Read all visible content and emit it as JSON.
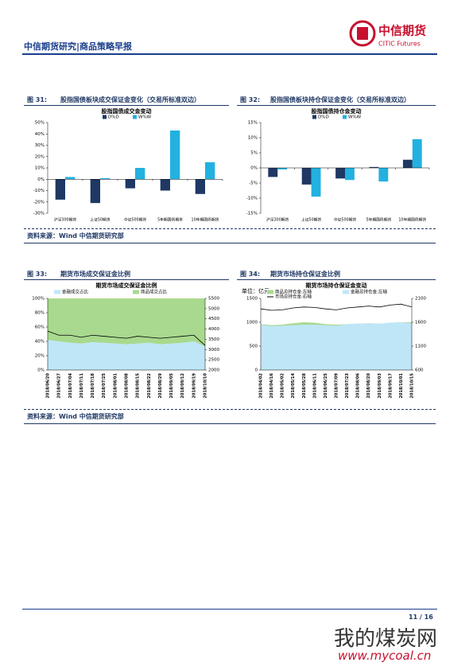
{
  "header": {
    "title": "中信期货研究|商品策略早报",
    "logo_cn": "中信期货",
    "logo_en": "CITIC Futures"
  },
  "figures": [
    {
      "label": "图 31:",
      "title": "股指国债板块成交保证金变化（交易所标准双边）"
    },
    {
      "label": "图 32:",
      "title": "股指国债板块持仓保证金变化（交易所标准双边）"
    },
    {
      "label": "图 33:",
      "title": "期货市场成交保证金比例"
    },
    {
      "label": "图 34:",
      "title": "期货市场持仓保证金比例"
    }
  ],
  "sources": [
    "资料来源：Wind  中信期货研究部",
    "资料来源：Wind  中信期货研究部"
  ],
  "footer": {
    "page": "11 / 16"
  },
  "watermark": {
    "name": "我的煤炭网",
    "url": "www.mycoal.cn"
  },
  "chart_data": [
    {
      "type": "bar",
      "title": "股指国债成交金变动",
      "categories": [
        "沪深300期货",
        "上证50期货",
        "中证500期货",
        "5年期国债期货",
        "10年期国债期货"
      ],
      "series": [
        {
          "name": "D%D",
          "color": "#1f3864",
          "values": [
            -18,
            -21,
            -8,
            -10,
            -13
          ]
        },
        {
          "name": "W%W",
          "color": "#22b1e0",
          "values": [
            2,
            1,
            10,
            43,
            15
          ]
        }
      ],
      "ylim": [
        -30,
        50
      ],
      "yticks": [
        {
          "value": -30,
          "label": "-30%"
        },
        {
          "value": -20,
          "label": "-20%"
        },
        {
          "value": -10,
          "label": "-10%"
        },
        {
          "value": 0,
          "label": "0%"
        },
        {
          "value": 10,
          "label": "10%"
        },
        {
          "value": 20,
          "label": "20%"
        },
        {
          "value": 30,
          "label": "30%"
        },
        {
          "value": 40,
          "label": "40%"
        },
        {
          "value": 50,
          "label": "50%"
        }
      ]
    },
    {
      "type": "bar",
      "title": "股指国债持仓金变动",
      "categories": [
        "沪深300期货",
        "上证50期货",
        "中证500期货",
        "5年期国债期货",
        "10年期国债期货"
      ],
      "series": [
        {
          "name": "D%D",
          "color": "#1f3864",
          "values": [
            -3,
            -5.5,
            -3.5,
            0.3,
            2.7
          ]
        },
        {
          "name": "W%W",
          "color": "#22b1e0",
          "values": [
            -0.5,
            -9.5,
            -4,
            -4.5,
            9.5
          ]
        }
      ],
      "ylim": [
        -15,
        15
      ],
      "yticks": [
        {
          "value": -15,
          "label": "-15%"
        },
        {
          "value": -10,
          "label": "-10%"
        },
        {
          "value": -5,
          "label": "-5%"
        },
        {
          "value": 0,
          "label": "0%"
        },
        {
          "value": 5,
          "label": "5%"
        },
        {
          "value": 10,
          "label": "10%"
        },
        {
          "value": 15,
          "label": "15%"
        }
      ]
    },
    {
      "type": "area",
      "title": "期货市场成交保证金比例",
      "stacked": true,
      "categories": [
        "2018/06/20",
        "2018/06/27",
        "2018/07/04",
        "2018/07/11",
        "2018/07/18",
        "2018/07/25",
        "2018/08/01",
        "2018/08/08",
        "2018/08/15",
        "2018/08/22",
        "2018/08/29",
        "2018/09/05",
        "2018/09/12",
        "2018/09/19",
        "2018/10/10"
      ],
      "series": [
        {
          "name": "金融成交占比",
          "kind": "area",
          "color": "#bfe6f7",
          "values": [
            42,
            40,
            38,
            37,
            39,
            38,
            37,
            36,
            37,
            38,
            36,
            37,
            38,
            40,
            33
          ]
        },
        {
          "name": "商品成交占比",
          "kind": "area",
          "color": "#a8d98e",
          "values": [
            58,
            60,
            62,
            63,
            61,
            62,
            63,
            64,
            63,
            62,
            64,
            63,
            62,
            60,
            67
          ]
        },
        {
          "kind": "line",
          "axis": "y2",
          "color": "#000000",
          "values": [
            3900,
            3700,
            3700,
            3600,
            3700,
            3650,
            3600,
            3550,
            3650,
            3600,
            3550,
            3600,
            3650,
            3700,
            3200
          ]
        }
      ],
      "ylim": [
        0,
        100
      ],
      "yticks": [
        {
          "value": 0,
          "label": "0%"
        },
        {
          "value": 20,
          "label": "20%"
        },
        {
          "value": 40,
          "label": "40%"
        },
        {
          "value": 60,
          "label": "60%"
        },
        {
          "value": 80,
          "label": "80%"
        },
        {
          "value": 100,
          "label": "100%"
        }
      ],
      "y2lim": [
        2000,
        5500
      ],
      "y2ticks": [
        2000,
        2500,
        3000,
        3500,
        4000,
        4500,
        5000,
        5500
      ]
    },
    {
      "type": "area",
      "title": "期货市场持仓保证金变动",
      "unit": "单位：亿元",
      "stacked": false,
      "categories": [
        "2018/04/02",
        "2018/04/16",
        "2018/05/02",
        "2018/05/14",
        "2018/05/28",
        "2018/06/11",
        "2018/06/25",
        "2018/07/09",
        "2018/07/23",
        "2018/08/06",
        "2018/08/20",
        "2018/09/03",
        "2018/09/17",
        "2018/10/01",
        "2018/10/15"
      ],
      "series": [
        {
          "name": "商品总持仓金:左轴",
          "kind": "area",
          "color": "#a8d98e",
          "values": [
            960,
            940,
            950,
            980,
            1000,
            990,
            960,
            950,
            960,
            970,
            980,
            970,
            990,
            1000,
            1000
          ]
        },
        {
          "name": "金融总持仓金:左轴",
          "kind": "area",
          "color": "#bfe6f7",
          "values": [
            950,
            920,
            930,
            940,
            950,
            950,
            940,
            930,
            960,
            970,
            980,
            970,
            990,
            1000,
            980
          ]
        },
        {
          "name": "市场总持仓金:右轴",
          "kind": "line",
          "axis": "y2",
          "color": "#000000",
          "values": [
            1880,
            1850,
            1860,
            1900,
            1920,
            1910,
            1880,
            1860,
            1900,
            1920,
            1940,
            1920,
            1960,
            1980,
            1920
          ]
        }
      ],
      "ylim": [
        0,
        1500
      ],
      "yticks": [
        0,
        500,
        1000,
        1500
      ],
      "y2lim": [
        600,
        2100
      ],
      "y2ticks": [
        600,
        1100,
        1600,
        2100
      ]
    }
  ]
}
